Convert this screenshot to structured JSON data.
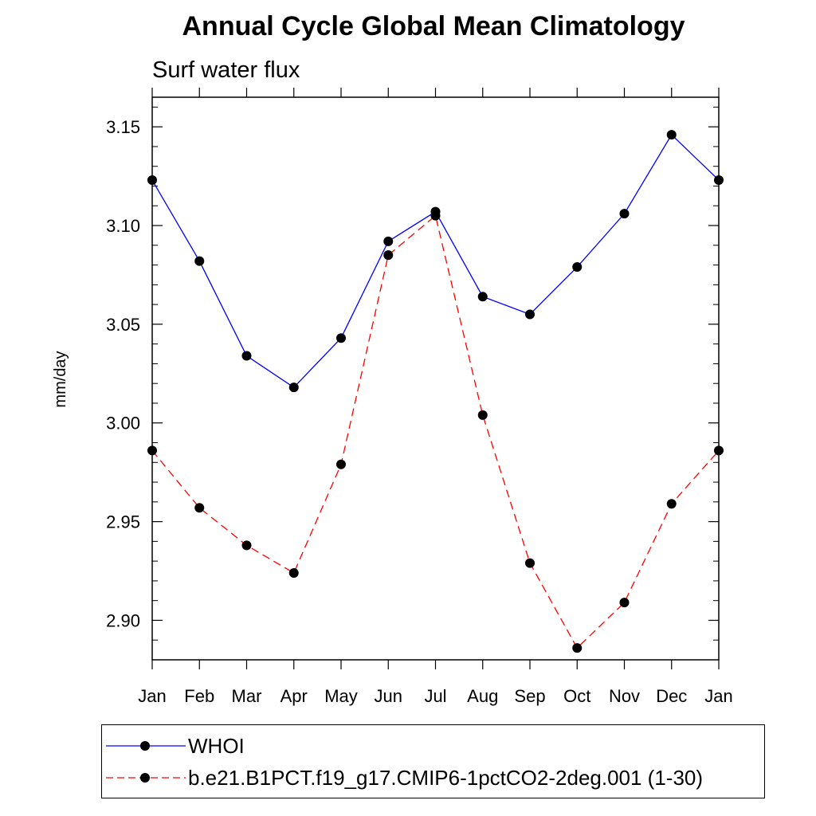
{
  "chart_data": {
    "type": "line",
    "title": "Annual Cycle Global Mean Climatology",
    "subtitle": "Surf water flux",
    "xlabel": "",
    "ylabel": "mm/day",
    "categories": [
      "Jan",
      "Feb",
      "Mar",
      "Apr",
      "May",
      "Jun",
      "Jul",
      "Aug",
      "Sep",
      "Oct",
      "Nov",
      "Dec",
      "Jan"
    ],
    "ylim": [
      2.88,
      3.165
    ],
    "yticks": [
      "3.15",
      "3.10",
      "3.05",
      "3.00",
      "2.95",
      "2.90"
    ],
    "ytick_values": [
      3.15,
      3.1,
      3.05,
      3.0,
      2.95,
      2.9
    ],
    "series": [
      {
        "name": "WHOI",
        "color": "#0000ff",
        "style": "solid",
        "values": [
          3.123,
          3.082,
          3.034,
          3.018,
          3.043,
          3.092,
          3.107,
          3.064,
          3.055,
          3.079,
          3.106,
          3.146,
          3.123
        ]
      },
      {
        "name": "b.e21.B1PCT.f19_g17.CMIP6-1pctCO2-2deg.001 (1-30)",
        "color": "#ff0000",
        "style": "dashed",
        "values": [
          2.986,
          2.957,
          2.938,
          2.924,
          2.979,
          3.085,
          3.105,
          3.004,
          2.929,
          2.886,
          2.909,
          2.959,
          2.986
        ]
      }
    ]
  }
}
